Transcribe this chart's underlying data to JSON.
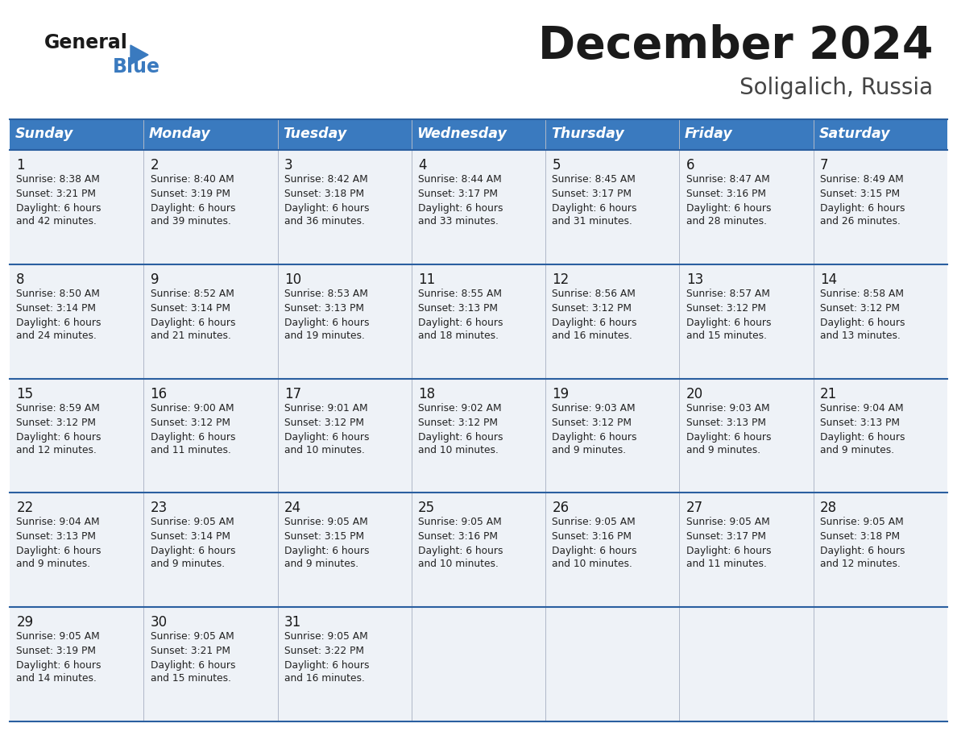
{
  "title": "December 2024",
  "subtitle": "Soligalich, Russia",
  "header_color": "#3a7abf",
  "header_text_color": "#ffffff",
  "days_of_week": [
    "Sunday",
    "Monday",
    "Tuesday",
    "Wednesday",
    "Thursday",
    "Friday",
    "Saturday"
  ],
  "cell_bg_color": "#eef2f7",
  "line_color": "#2a5fa0",
  "weeks": [
    [
      {
        "day": "1",
        "sunrise": "8:38 AM",
        "sunset": "3:21 PM",
        "daylight_line1": "Daylight: 6 hours",
        "daylight_line2": "and 42 minutes."
      },
      {
        "day": "2",
        "sunrise": "8:40 AM",
        "sunset": "3:19 PM",
        "daylight_line1": "Daylight: 6 hours",
        "daylight_line2": "and 39 minutes."
      },
      {
        "day": "3",
        "sunrise": "8:42 AM",
        "sunset": "3:18 PM",
        "daylight_line1": "Daylight: 6 hours",
        "daylight_line2": "and 36 minutes."
      },
      {
        "day": "4",
        "sunrise": "8:44 AM",
        "sunset": "3:17 PM",
        "daylight_line1": "Daylight: 6 hours",
        "daylight_line2": "and 33 minutes."
      },
      {
        "day": "5",
        "sunrise": "8:45 AM",
        "sunset": "3:17 PM",
        "daylight_line1": "Daylight: 6 hours",
        "daylight_line2": "and 31 minutes."
      },
      {
        "day": "6",
        "sunrise": "8:47 AM",
        "sunset": "3:16 PM",
        "daylight_line1": "Daylight: 6 hours",
        "daylight_line2": "and 28 minutes."
      },
      {
        "day": "7",
        "sunrise": "8:49 AM",
        "sunset": "3:15 PM",
        "daylight_line1": "Daylight: 6 hours",
        "daylight_line2": "and 26 minutes."
      }
    ],
    [
      {
        "day": "8",
        "sunrise": "8:50 AM",
        "sunset": "3:14 PM",
        "daylight_line1": "Daylight: 6 hours",
        "daylight_line2": "and 24 minutes."
      },
      {
        "day": "9",
        "sunrise": "8:52 AM",
        "sunset": "3:14 PM",
        "daylight_line1": "Daylight: 6 hours",
        "daylight_line2": "and 21 minutes."
      },
      {
        "day": "10",
        "sunrise": "8:53 AM",
        "sunset": "3:13 PM",
        "daylight_line1": "Daylight: 6 hours",
        "daylight_line2": "and 19 minutes."
      },
      {
        "day": "11",
        "sunrise": "8:55 AM",
        "sunset": "3:13 PM",
        "daylight_line1": "Daylight: 6 hours",
        "daylight_line2": "and 18 minutes."
      },
      {
        "day": "12",
        "sunrise": "8:56 AM",
        "sunset": "3:12 PM",
        "daylight_line1": "Daylight: 6 hours",
        "daylight_line2": "and 16 minutes."
      },
      {
        "day": "13",
        "sunrise": "8:57 AM",
        "sunset": "3:12 PM",
        "daylight_line1": "Daylight: 6 hours",
        "daylight_line2": "and 15 minutes."
      },
      {
        "day": "14",
        "sunrise": "8:58 AM",
        "sunset": "3:12 PM",
        "daylight_line1": "Daylight: 6 hours",
        "daylight_line2": "and 13 minutes."
      }
    ],
    [
      {
        "day": "15",
        "sunrise": "8:59 AM",
        "sunset": "3:12 PM",
        "daylight_line1": "Daylight: 6 hours",
        "daylight_line2": "and 12 minutes."
      },
      {
        "day": "16",
        "sunrise": "9:00 AM",
        "sunset": "3:12 PM",
        "daylight_line1": "Daylight: 6 hours",
        "daylight_line2": "and 11 minutes."
      },
      {
        "day": "17",
        "sunrise": "9:01 AM",
        "sunset": "3:12 PM",
        "daylight_line1": "Daylight: 6 hours",
        "daylight_line2": "and 10 minutes."
      },
      {
        "day": "18",
        "sunrise": "9:02 AM",
        "sunset": "3:12 PM",
        "daylight_line1": "Daylight: 6 hours",
        "daylight_line2": "and 10 minutes."
      },
      {
        "day": "19",
        "sunrise": "9:03 AM",
        "sunset": "3:12 PM",
        "daylight_line1": "Daylight: 6 hours",
        "daylight_line2": "and 9 minutes."
      },
      {
        "day": "20",
        "sunrise": "9:03 AM",
        "sunset": "3:13 PM",
        "daylight_line1": "Daylight: 6 hours",
        "daylight_line2": "and 9 minutes."
      },
      {
        "day": "21",
        "sunrise": "9:04 AM",
        "sunset": "3:13 PM",
        "daylight_line1": "Daylight: 6 hours",
        "daylight_line2": "and 9 minutes."
      }
    ],
    [
      {
        "day": "22",
        "sunrise": "9:04 AM",
        "sunset": "3:13 PM",
        "daylight_line1": "Daylight: 6 hours",
        "daylight_line2": "and 9 minutes."
      },
      {
        "day": "23",
        "sunrise": "9:05 AM",
        "sunset": "3:14 PM",
        "daylight_line1": "Daylight: 6 hours",
        "daylight_line2": "and 9 minutes."
      },
      {
        "day": "24",
        "sunrise": "9:05 AM",
        "sunset": "3:15 PM",
        "daylight_line1": "Daylight: 6 hours",
        "daylight_line2": "and 9 minutes."
      },
      {
        "day": "25",
        "sunrise": "9:05 AM",
        "sunset": "3:16 PM",
        "daylight_line1": "Daylight: 6 hours",
        "daylight_line2": "and 10 minutes."
      },
      {
        "day": "26",
        "sunrise": "9:05 AM",
        "sunset": "3:16 PM",
        "daylight_line1": "Daylight: 6 hours",
        "daylight_line2": "and 10 minutes."
      },
      {
        "day": "27",
        "sunrise": "9:05 AM",
        "sunset": "3:17 PM",
        "daylight_line1": "Daylight: 6 hours",
        "daylight_line2": "and 11 minutes."
      },
      {
        "day": "28",
        "sunrise": "9:05 AM",
        "sunset": "3:18 PM",
        "daylight_line1": "Daylight: 6 hours",
        "daylight_line2": "and 12 minutes."
      }
    ],
    [
      {
        "day": "29",
        "sunrise": "9:05 AM",
        "sunset": "3:19 PM",
        "daylight_line1": "Daylight: 6 hours",
        "daylight_line2": "and 14 minutes."
      },
      {
        "day": "30",
        "sunrise": "9:05 AM",
        "sunset": "3:21 PM",
        "daylight_line1": "Daylight: 6 hours",
        "daylight_line2": "and 15 minutes."
      },
      {
        "day": "31",
        "sunrise": "9:05 AM",
        "sunset": "3:22 PM",
        "daylight_line1": "Daylight: 6 hours",
        "daylight_line2": "and 16 minutes."
      },
      null,
      null,
      null,
      null
    ]
  ]
}
